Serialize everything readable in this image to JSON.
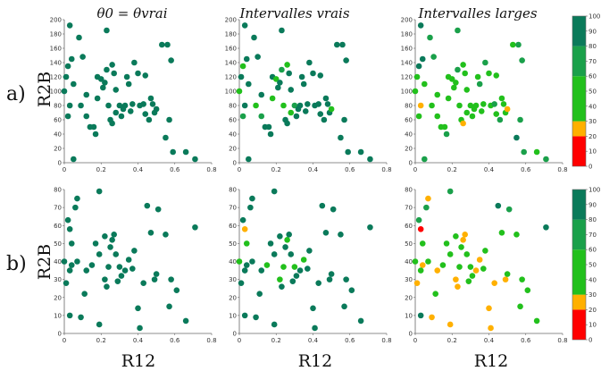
{
  "chart_data": {
    "type": "scatter",
    "xlabel": "R12",
    "ylabel": "R2B",
    "row_labels": [
      "a)",
      "b)"
    ],
    "column_titles": [
      "θ0 = θvrai",
      "Intervalles vrais",
      "Intervalles larges"
    ],
    "colorbar": {
      "ticks": [
        0,
        10,
        20,
        30,
        40,
        50,
        60,
        70,
        80,
        90,
        100
      ],
      "bands": [
        {
          "from": 0,
          "to": 20,
          "color": "#ff0000"
        },
        {
          "from": 20,
          "to": 30,
          "color": "#ffb000"
        },
        {
          "from": 30,
          "to": 60,
          "color": "#22c01c"
        },
        {
          "from": 60,
          "to": 80,
          "color": "#1aa04a"
        },
        {
          "from": 80,
          "to": 100,
          "color": "#0a7a5a"
        }
      ]
    },
    "rows": [
      {
        "ylim": [
          0,
          200
        ],
        "yticks": [
          0,
          20,
          40,
          60,
          80,
          100,
          120,
          140,
          160,
          180,
          200
        ],
        "xlim": [
          0,
          0.8
        ],
        "xticks": [
          "0",
          "0.2",
          "0.4",
          "0.6",
          "0.8"
        ],
        "x": [
          0.0,
          0.03,
          0.04,
          0.05,
          0.03,
          0.02,
          0.01,
          0.02,
          0.08,
          0.1,
          0.09,
          0.12,
          0.12,
          0.14,
          0.16,
          0.17,
          0.18,
          0.21,
          0.2,
          0.22,
          0.23,
          0.24,
          0.25,
          0.26,
          0.27,
          0.26,
          0.28,
          0.28,
          0.3,
          0.31,
          0.32,
          0.33,
          0.34,
          0.35,
          0.36,
          0.37,
          0.38,
          0.4,
          0.41,
          0.43,
          0.44,
          0.44,
          0.46,
          0.47,
          0.48,
          0.49,
          0.5,
          0.53,
          0.55,
          0.56,
          0.57,
          0.58,
          0.59,
          0.66,
          0.71,
          0.23,
          0.18,
          0.05
        ],
        "y": [
          100,
          192,
          145,
          110,
          80,
          135,
          120,
          65,
          175,
          148,
          80,
          95,
          65,
          50,
          50,
          40,
          120,
          105,
          117,
          112,
          185,
          80,
          60,
          55,
          125,
          137,
          70,
          102,
          80,
          65,
          75,
          80,
          120,
          110,
          72,
          82,
          140,
          125,
          80,
          82,
          122,
          68,
          60,
          90,
          82,
          70,
          75,
          165,
          35,
          165,
          60,
          143,
          15,
          15,
          5,
          130,
          90,
          5
        ],
        "panels": [
          {
            "v": [
              90,
              90,
              90,
              90,
              90,
              90,
              90,
              90,
              90,
              90,
              90,
              90,
              90,
              90,
              90,
              90,
              90,
              90,
              90,
              90,
              90,
              90,
              90,
              90,
              90,
              90,
              90,
              90,
              90,
              90,
              90,
              90,
              90,
              90,
              90,
              90,
              90,
              90,
              90,
              90,
              90,
              90,
              90,
              90,
              90,
              90,
              90,
              90,
              90,
              90,
              90,
              90,
              90,
              90,
              90,
              90,
              90,
              90
            ]
          },
          {
            "v": [
              50,
              90,
              90,
              90,
              90,
              50,
              90,
              75,
              90,
              90,
              50,
              90,
              65,
              90,
              90,
              90,
              90,
              90,
              55,
              90,
              90,
              50,
              90,
              90,
              90,
              45,
              55,
              90,
              65,
              90,
              90,
              90,
              90,
              90,
              90,
              90,
              90,
              90,
              90,
              90,
              90,
              90,
              90,
              90,
              90,
              90,
              55,
              90,
              90,
              90,
              90,
              90,
              90,
              90,
              90,
              70,
              50,
              90
            ]
          },
          {
            "v": [
              45,
              90,
              80,
              55,
              25,
              80,
              40,
              50,
              75,
              70,
              45,
              50,
              55,
              40,
              50,
              60,
              55,
              55,
              50,
              45,
              70,
              50,
              40,
              25,
              55,
              40,
              45,
              45,
              50,
              40,
              55,
              50,
              55,
              60,
              45,
              50,
              65,
              45,
              40,
              60,
              55,
              50,
              60,
              45,
              50,
              40,
              25,
              50,
              80,
              60,
              75,
              65,
              70,
              55,
              70,
              60,
              50,
              65
            ]
          }
        ]
      },
      {
        "ylim": [
          0,
          80
        ],
        "yticks": [
          0,
          10,
          20,
          30,
          40,
          50,
          60,
          70,
          80
        ],
        "xlim": [
          0,
          0.8
        ],
        "xticks": [
          "0",
          "0.2",
          "0.4",
          "0.6",
          "0.8"
        ],
        "x": [
          0.0,
          0.03,
          0.04,
          0.07,
          0.06,
          0.02,
          0.01,
          0.03,
          0.09,
          0.07,
          0.11,
          0.12,
          0.15,
          0.17,
          0.19,
          0.19,
          0.22,
          0.22,
          0.23,
          0.24,
          0.25,
          0.26,
          0.27,
          0.28,
          0.29,
          0.3,
          0.31,
          0.33,
          0.35,
          0.37,
          0.38,
          0.4,
          0.41,
          0.43,
          0.45,
          0.47,
          0.49,
          0.5,
          0.51,
          0.55,
          0.57,
          0.58,
          0.61,
          0.66,
          0.71,
          0.04,
          0.19,
          0.03
        ],
        "y": [
          40,
          58,
          38,
          75,
          70,
          63,
          28,
          35,
          9,
          40,
          22,
          35,
          38,
          50,
          44,
          79,
          30,
          54,
          26,
          37,
          48,
          52,
          55,
          44,
          29,
          37,
          32,
          35,
          41,
          36,
          46,
          14,
          3,
          28,
          71,
          56,
          30,
          33,
          69,
          55,
          15,
          30,
          24,
          7,
          59,
          50,
          5,
          10
        ],
        "panels": [
          {
            "v": [
              90,
              90,
              90,
              90,
              90,
              90,
              90,
              90,
              90,
              90,
              90,
              90,
              90,
              90,
              90,
              90,
              90,
              90,
              90,
              90,
              90,
              90,
              90,
              90,
              90,
              90,
              90,
              90,
              90,
              90,
              90,
              90,
              90,
              90,
              90,
              90,
              90,
              90,
              90,
              90,
              90,
              90,
              90,
              90,
              90,
              90,
              90,
              90
            ]
          },
          {
            "v": [
              50,
              25,
              90,
              90,
              90,
              90,
              90,
              90,
              90,
              90,
              90,
              90,
              55,
              90,
              90,
              90,
              50,
              90,
              90,
              45,
              90,
              55,
              90,
              90,
              90,
              50,
              90,
              90,
              45,
              90,
              90,
              90,
              90,
              90,
              90,
              90,
              90,
              90,
              90,
              90,
              90,
              90,
              90,
              90,
              90,
              50,
              90,
              90
            ]
          },
          {
            "v": [
              55,
              15,
              25,
              25,
              70,
              75,
              25,
              45,
              25,
              50,
              45,
              25,
              45,
              55,
              50,
              75,
              25,
              45,
              25,
              50,
              45,
              25,
              25,
              45,
              50,
              45,
              45,
              25,
              25,
              50,
              45,
              25,
              25,
              25,
              90,
              55,
              25,
              45,
              65,
              55,
              55,
              45,
              45,
              45,
              90,
              50,
              25,
              90
            ]
          }
        ]
      }
    ]
  }
}
